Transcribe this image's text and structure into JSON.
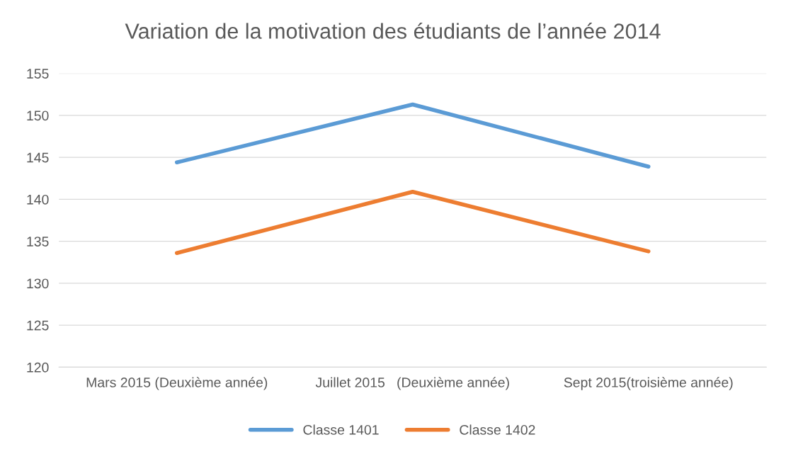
{
  "chart_data": {
    "type": "line",
    "title": "Variation de la motivation des étudiants de l’année 2014",
    "categories": [
      "Mars 2015 (Deuxième année)",
      "Juillet 2015   (Deuxième année)",
      "Sept 2015(troisième année)"
    ],
    "series": [
      {
        "name": "Classe 1401",
        "color": "#5b9bd5",
        "values": [
          144.4,
          151.3,
          143.9
        ]
      },
      {
        "name": "Classe 1402",
        "color": "#ed7d31",
        "values": [
          133.6,
          140.9,
          133.8
        ]
      }
    ],
    "ylim": [
      120,
      155
    ],
    "yticks": [
      120,
      125,
      130,
      135,
      140,
      145,
      150,
      155
    ],
    "grid": "y",
    "legend": "bottom",
    "marker": "none",
    "line_style": "solid"
  }
}
